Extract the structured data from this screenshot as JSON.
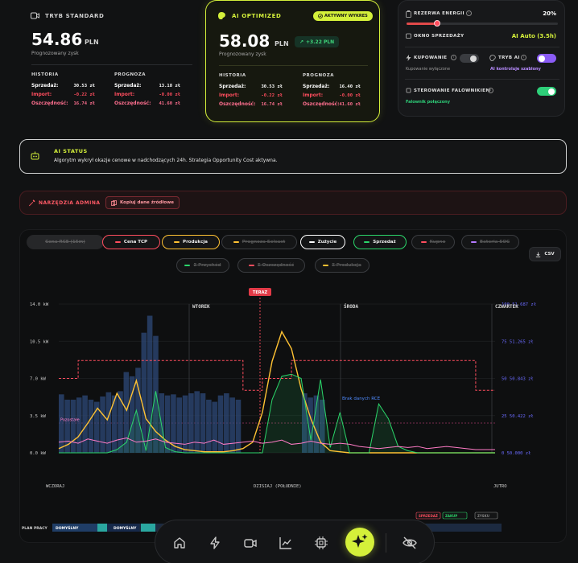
{
  "standard": {
    "title": "TRYB STANDARD",
    "amount": "54.86",
    "unit": "PLN",
    "subtitle": "Prognozowany zysk",
    "history_head": "HISTORIA",
    "forecast_head": "PROGNOZA",
    "history": [
      {
        "label": "Sprzedaż:",
        "value": "30.53 zł"
      },
      {
        "label": "Import:",
        "value": "-0.22 zł"
      },
      {
        "label": "Oszczędność:",
        "value": "16.74 zł"
      }
    ],
    "forecast": [
      {
        "label": "Sprzedaż:",
        "value": "13.18 zł"
      },
      {
        "label": "Import:",
        "value": "-0.00 zł"
      },
      {
        "label": "Oszczędność:",
        "value": "41.60 zł"
      }
    ]
  },
  "ai": {
    "title": "AI OPTIMIZED",
    "badge": "AKTYWNY WYKRES",
    "amount": "58.08",
    "unit": "PLN",
    "gain": "+3.22 PLN",
    "subtitle": "Prognozowany zysk",
    "history_head": "HISTORIA",
    "forecast_head": "PROGNOZA",
    "history": [
      {
        "label": "Sprzedaż:",
        "value": "30.53 zł"
      },
      {
        "label": "Import:",
        "value": "-0.22 zł"
      },
      {
        "label": "Oszczędność:",
        "value": "16.74 zł"
      }
    ],
    "forecast": [
      {
        "label": "Sprzedaż:",
        "value": "16.40 zł"
      },
      {
        "label": "Import:",
        "value": "-0.00 zł"
      },
      {
        "label": "Oszczędność:",
        "value": "41.60 zł"
      }
    ]
  },
  "settings": {
    "reserve_label": "REZERWA ENERGII",
    "reserve_value": "20%",
    "reserve_level": 0.2,
    "window_label": "OKNO SPRZEDAŻY",
    "window_value": "AI Auto (3.5h)",
    "buy_label": "KUPOWANIE",
    "buy_sub": "Kupowanie wyłączone",
    "ai_mode_label": "TRYB AI",
    "ai_mode_sub": "AI kontroluje szablony",
    "inverter_label": "STEROWANIE FALOWNIKIEM",
    "inverter_sub": "Falownik połączony"
  },
  "ai_status": {
    "title": "AI STATUS",
    "text": "Algorytm wykrył okazje cenowe w nadchodzących 24h. Strategia Opportunity Cost aktywna."
  },
  "admin": {
    "title": "NARZĘDZIA ADMINA",
    "copy_button": "Kopiuj dane źródłowe"
  },
  "chart_controls": {
    "chips_row1": [
      {
        "label": "Cena RCE (15m)",
        "color": "#6b6f75",
        "active": false
      },
      {
        "label": "Cena TCP",
        "color": "#ff4d5e",
        "active": true
      },
      {
        "label": "Produkcja",
        "color": "#ffc233",
        "active": true
      },
      {
        "label": "Prognoza Solcast",
        "color": "#ffc233",
        "active": false
      },
      {
        "label": "Zużycie",
        "color": "#ffffff",
        "active": true
      },
      {
        "label": "Sprzedaż",
        "color": "#2bd66a",
        "active": true
      },
      {
        "label": "Kupno",
        "color": "#ff4d5e",
        "active": false
      },
      {
        "label": "Bateria SOC",
        "color": "#b57aff",
        "active": false
      }
    ],
    "chips_row2": [
      {
        "label": "Σ Przychód",
        "color": "#2bd66a",
        "active": false
      },
      {
        "label": "Σ Oszczędność",
        "color": "#ff4d5e",
        "active": false
      },
      {
        "label": "Σ Produkcja",
        "color": "#ffc233",
        "active": false
      }
    ],
    "csv_label": "CSV"
  },
  "chart_data": {
    "type": "line",
    "x_axis_labels": [
      "WCZORAJ",
      "DZISIAJ (POŁUDNIE)",
      "JUTRO"
    ],
    "day_markers": [
      "WTOREK",
      "ŚRODA",
      "CZWARTEK"
    ],
    "now_label": "TERAZ",
    "y_left_ticks": [
      "14.0 kW",
      "10.5 kW",
      "7.0 kW",
      "3.5 kW",
      "0.0 kW"
    ],
    "y_left_range": [
      0,
      14
    ],
    "y_right_ticks": [
      "100 51.687 zł",
      "75 51.265 zł",
      "50 50.843 zł",
      "25 50.422 zł",
      "0 50.000 zł"
    ],
    "y_right_range": [
      0,
      100
    ],
    "annotation_rce": "Brak danych RCE",
    "annotation_left": "Pozostałe",
    "series": [
      {
        "name": "Produkcja",
        "color": "#ffc233",
        "values": [
          0.4,
          0.8,
          1.5,
          2.8,
          4.2,
          3.1,
          5.6,
          4.0,
          6.8,
          3.2,
          2.0,
          1.2,
          0.6,
          0.3,
          0.2,
          0.1,
          0.1,
          0.1,
          0.2,
          0.4,
          1.0,
          3.8,
          8.6,
          11.4,
          9.8,
          6.0,
          3.2,
          1.0,
          0.2,
          0.1,
          0,
          0,
          0,
          0,
          0,
          0,
          0,
          0,
          0,
          0,
          0,
          0,
          0,
          0,
          0,
          0
        ]
      },
      {
        "name": "Sprzedaż",
        "color": "#2bd66a",
        "values": [
          0,
          0,
          0,
          0,
          0,
          0,
          0.3,
          1.0,
          4.0,
          0.2,
          5.8,
          0.5,
          0.1,
          0,
          0,
          0,
          0,
          0,
          0,
          0,
          0,
          0,
          5.0,
          7.2,
          7.4,
          7.0,
          1.2,
          6.9,
          0.5,
          3.8,
          0,
          0,
          0,
          4.6,
          3.2,
          0.6,
          0.2,
          0,
          0,
          0,
          0,
          0,
          0,
          0,
          0,
          0
        ]
      },
      {
        "name": "Zużycie",
        "color": "#ff7bc6",
        "values": [
          1.0,
          1.1,
          0.9,
          1.3,
          1.1,
          0.9,
          1.2,
          1.4,
          1.0,
          1.1,
          1.3,
          1.0,
          0.9,
          0.8,
          1.0,
          0.9,
          1.2,
          0.8,
          0.9,
          1.0,
          1.1,
          0.9,
          1.0,
          1.2,
          0.8,
          0.9,
          1.1,
          0.9,
          0.8,
          0.9,
          0.8,
          0.6,
          0.5,
          0.4,
          0.5,
          0.6,
          0.5,
          0.6,
          0.4,
          0.5,
          0.6,
          0.5,
          0.4,
          0.3,
          0.3,
          0.3
        ]
      },
      {
        "name": "Cena TCP",
        "color": "#ff4d5e",
        "values": [
          50,
          50,
          62,
          62,
          62,
          62,
          62,
          62,
          62,
          62,
          62,
          62,
          62,
          62,
          62,
          62,
          62,
          62,
          62,
          42,
          42,
          50,
          50,
          50,
          62,
          62,
          62,
          62,
          62,
          62,
          62,
          62,
          62,
          62,
          62,
          62,
          62,
          62,
          62,
          62,
          62,
          62,
          62,
          42,
          42,
          42
        ]
      }
    ],
    "bars_values": [
      5.5,
      5.0,
      5.0,
      5.2,
      5.4,
      5.0,
      4.8,
      5.3,
      5.7,
      5.4,
      5.8,
      7.6,
      7.2,
      8.0,
      11.3,
      12.9,
      11.0,
      5.6,
      5.4,
      5.5,
      5.2,
      5.4,
      5.6,
      5.8,
      5.6,
      5.0,
      4.8,
      5.4,
      5.6,
      5.2,
      5.0
    ],
    "grid": true
  },
  "timeline": {
    "left_label": "PLAN PRACY",
    "segments": [
      "DOMYŚLNY",
      "DOMYŚLNY"
    ],
    "legend": [
      "SPRZEDAŻ",
      "ZAKUP",
      "ZYSKU"
    ]
  },
  "nav": [
    "home-icon",
    "bolt-icon",
    "camera-icon",
    "chart-icon",
    "cpu-icon",
    "sparkle-icon",
    "eye-off-icon"
  ]
}
